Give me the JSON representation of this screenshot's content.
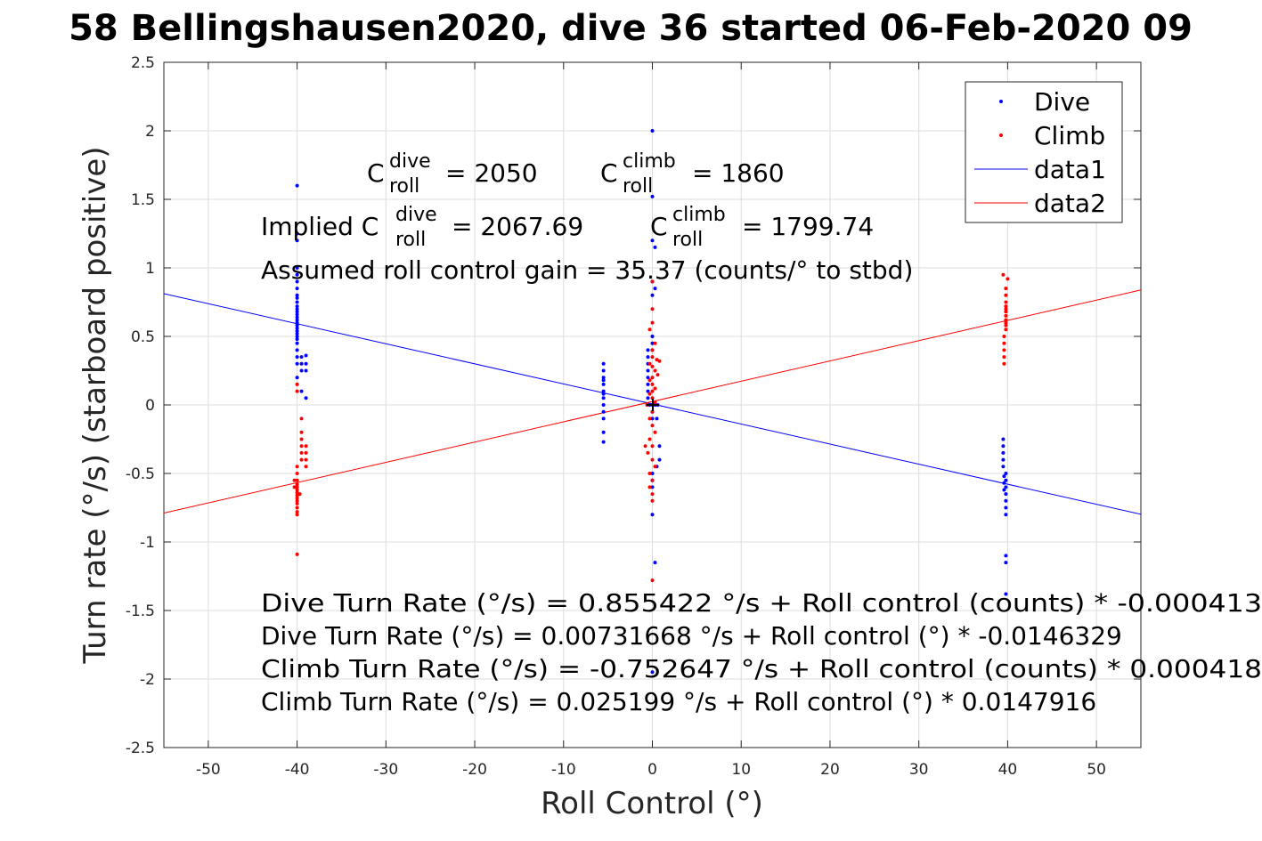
{
  "chart_data": {
    "type": "scatter",
    "title": "58 Bellingshausen2020, dive 36 started 06-Feb-2020 09",
    "xlabel": "Roll Control (°)",
    "ylabel": "Turn rate (°/s) (starboard positive)",
    "xlim": [
      -55,
      55
    ],
    "ylim": [
      -2.5,
      2.5
    ],
    "xticks": [
      "-50",
      "-40",
      "-30",
      "-20",
      "-10",
      "0",
      "10",
      "20",
      "30",
      "40",
      "50"
    ],
    "yticks": [
      "2.5",
      "2",
      "1.5",
      "1",
      "0.5",
      "0",
      "-0.5",
      "-1",
      "-1.5",
      "-2",
      "-2.5"
    ],
    "xtick_values": [
      -50,
      -40,
      -30,
      -20,
      -10,
      0,
      10,
      20,
      30,
      40,
      50
    ],
    "ytick_values": [
      2.5,
      2,
      1.5,
      1,
      0.5,
      0,
      -0.5,
      -1,
      -1.5,
      -2,
      -2.5
    ],
    "grid": true,
    "legend_position": "top-right",
    "legend": [
      {
        "label": "Dive",
        "marker": "dot",
        "color": "#0000ff"
      },
      {
        "label": "Climb",
        "marker": "dot",
        "color": "#ff0000"
      },
      {
        "label": "data1",
        "marker": "line",
        "color": "#0000ff"
      },
      {
        "label": "data2",
        "marker": "line",
        "color": "#ff0000"
      }
    ],
    "series": [
      {
        "name": "Dive",
        "color": "#0000ff",
        "points": [
          [
            -40,
            1.6
          ],
          [
            -40,
            1.25
          ],
          [
            -40,
            1.2
          ],
          [
            -40,
            1.0
          ],
          [
            -40,
            0.95
          ],
          [
            -40,
            0.9
          ],
          [
            -40,
            0.85
          ],
          [
            -40,
            0.8
          ],
          [
            -40,
            0.78
          ],
          [
            -40,
            0.75
          ],
          [
            -40,
            0.72
          ],
          [
            -40,
            0.7
          ],
          [
            -40,
            0.68
          ],
          [
            -40,
            0.66
          ],
          [
            -40,
            0.64
          ],
          [
            -40,
            0.62
          ],
          [
            -40,
            0.6
          ],
          [
            -40,
            0.58
          ],
          [
            -40,
            0.56
          ],
          [
            -40,
            0.54
          ],
          [
            -40,
            0.52
          ],
          [
            -40,
            0.5
          ],
          [
            -40,
            0.48
          ],
          [
            -40,
            0.45
          ],
          [
            -40,
            0.4
          ],
          [
            -40,
            0.35
          ],
          [
            -40,
            0.3
          ],
          [
            -40,
            0.2
          ],
          [
            -39.5,
            0.35
          ],
          [
            -39.5,
            0.3
          ],
          [
            -39.5,
            0.25
          ],
          [
            -39,
            0.36
          ],
          [
            -39,
            0.3
          ],
          [
            -39,
            0.25
          ],
          [
            -39.5,
            0.1
          ],
          [
            -39,
            0.05
          ],
          [
            -5.5,
            0.3
          ],
          [
            -5.5,
            0.25
          ],
          [
            -5.5,
            0.2
          ],
          [
            -5.5,
            0.15
          ],
          [
            -5.5,
            0.1
          ],
          [
            -5.5,
            0.05
          ],
          [
            -5.5,
            0.0
          ],
          [
            -5.5,
            -0.05
          ],
          [
            -5.5,
            -0.1
          ],
          [
            -5.5,
            -0.2
          ],
          [
            -5.5,
            -0.27
          ],
          [
            -5.5,
            0.18
          ],
          [
            -5.5,
            0.08
          ],
          [
            0,
            2.0
          ],
          [
            0,
            1.52
          ],
          [
            0,
            1.2
          ],
          [
            0.3,
            1.15
          ],
          [
            0,
            0.9
          ],
          [
            0.3,
            0.85
          ],
          [
            0,
            0.8
          ],
          [
            0,
            0.5
          ],
          [
            0,
            0.45
          ],
          [
            0,
            0.4
          ],
          [
            -0.5,
            0.4
          ],
          [
            -0.5,
            0.35
          ],
          [
            -0.5,
            0.3
          ],
          [
            -0.5,
            0.25
          ],
          [
            -0.5,
            0.2
          ],
          [
            -0.5,
            0.15
          ],
          [
            -0.5,
            0.1
          ],
          [
            -0.5,
            0.05
          ],
          [
            0,
            0.0
          ],
          [
            0.3,
            0.0
          ],
          [
            0.6,
            0.0
          ],
          [
            -0.3,
            0.0
          ],
          [
            0,
            -0.05
          ],
          [
            0,
            -0.1
          ],
          [
            0.5,
            -0.1
          ],
          [
            0.8,
            -0.3
          ],
          [
            0.8,
            -0.4
          ],
          [
            0.5,
            -0.45
          ],
          [
            0,
            -0.5
          ],
          [
            0,
            -0.55
          ],
          [
            0,
            -0.6
          ],
          [
            0,
            -0.8
          ],
          [
            0.3,
            -1.15
          ],
          [
            0,
            -1.95
          ],
          [
            39.5,
            -0.25
          ],
          [
            39.5,
            -0.3
          ],
          [
            39.5,
            -0.35
          ],
          [
            39.5,
            -0.4
          ],
          [
            39.5,
            -0.45
          ],
          [
            39.8,
            -0.5
          ],
          [
            39.8,
            -0.55
          ],
          [
            39.8,
            -0.6
          ],
          [
            39.8,
            -0.65
          ],
          [
            39.8,
            -0.7
          ],
          [
            39.8,
            -0.75
          ],
          [
            39.8,
            -0.8
          ],
          [
            39.6,
            -0.52
          ],
          [
            39.6,
            -0.57
          ],
          [
            39.6,
            -0.62
          ],
          [
            39.8,
            -1.1
          ],
          [
            39.8,
            -1.15
          ],
          [
            39.8,
            -1.38
          ]
        ]
      },
      {
        "name": "Climb",
        "color": "#ff0000",
        "points": [
          [
            -40,
            0.15
          ],
          [
            -40,
            0.1
          ],
          [
            -39.5,
            -0.1
          ],
          [
            -39.5,
            -0.2
          ],
          [
            -39.5,
            -0.25
          ],
          [
            -39.5,
            -0.3
          ],
          [
            -39.5,
            -0.35
          ],
          [
            -39.5,
            -0.4
          ],
          [
            -39,
            -0.3
          ],
          [
            -39,
            -0.35
          ],
          [
            -39,
            -0.4
          ],
          [
            -39,
            -0.45
          ],
          [
            -40,
            -0.45
          ],
          [
            -40,
            -0.5
          ],
          [
            -40,
            -0.55
          ],
          [
            -40,
            -0.58
          ],
          [
            -40,
            -0.6
          ],
          [
            -40,
            -0.62
          ],
          [
            -40,
            -0.64
          ],
          [
            -40,
            -0.66
          ],
          [
            -40,
            -0.68
          ],
          [
            -40,
            -0.7
          ],
          [
            -40,
            -0.72
          ],
          [
            -40,
            -0.75
          ],
          [
            -40,
            -0.78
          ],
          [
            -40,
            -0.8
          ],
          [
            -40.3,
            -0.55
          ],
          [
            -40.3,
            -0.6
          ],
          [
            -39.7,
            -0.65
          ],
          [
            -40,
            -1.09
          ],
          [
            0,
            0.9
          ],
          [
            0,
            0.7
          ],
          [
            0,
            0.6
          ],
          [
            -0.3,
            0.55
          ],
          [
            0.3,
            0.45
          ],
          [
            0,
            0.4
          ],
          [
            0,
            0.35
          ],
          [
            0.5,
            0.33
          ],
          [
            0.8,
            0.32
          ],
          [
            -0.3,
            0.3
          ],
          [
            0,
            0.28
          ],
          [
            0.3,
            0.25
          ],
          [
            0.6,
            0.22
          ],
          [
            0,
            0.2
          ],
          [
            -0.3,
            0.18
          ],
          [
            0,
            0.15
          ],
          [
            0.3,
            0.12
          ],
          [
            0,
            0.1
          ],
          [
            -0.3,
            0.08
          ],
          [
            0,
            0.05
          ],
          [
            0.3,
            0.02
          ],
          [
            -0.6,
            0.0
          ],
          [
            0,
            -0.05
          ],
          [
            -0.3,
            -0.1
          ],
          [
            0,
            -0.15
          ],
          [
            0.3,
            -0.2
          ],
          [
            -0.3,
            -0.25
          ],
          [
            0,
            -0.3
          ],
          [
            -0.8,
            -0.3
          ],
          [
            -0.5,
            -0.35
          ],
          [
            0,
            -0.4
          ],
          [
            0.3,
            -0.45
          ],
          [
            -0.3,
            -0.5
          ],
          [
            0,
            -0.55
          ],
          [
            -0.3,
            -0.6
          ],
          [
            0,
            -0.65
          ],
          [
            0,
            -0.7
          ],
          [
            0,
            -1.28
          ],
          [
            39.5,
            0.95
          ],
          [
            40,
            0.92
          ],
          [
            39.8,
            0.85
          ],
          [
            39.8,
            0.8
          ],
          [
            39.8,
            0.75
          ],
          [
            39.8,
            0.72
          ],
          [
            39.8,
            0.7
          ],
          [
            39.8,
            0.68
          ],
          [
            39.8,
            0.65
          ],
          [
            39.8,
            0.62
          ],
          [
            39.8,
            0.6
          ],
          [
            39.8,
            0.55
          ],
          [
            39.6,
            0.5
          ],
          [
            39.6,
            0.45
          ],
          [
            39.6,
            0.4
          ],
          [
            39.6,
            0.35
          ],
          [
            39.6,
            0.3
          ],
          [
            39.8,
            0.58
          ]
        ]
      },
      {
        "name": "data1",
        "color": "#0000ff",
        "type": "line",
        "x": [
          -55,
          55
        ],
        "y": [
          0.812,
          -0.798
        ]
      },
      {
        "name": "data2",
        "color": "#ff0000",
        "type": "line",
        "x": [
          -55,
          55
        ],
        "y": [
          -0.789,
          0.839
        ]
      }
    ],
    "annotations": {
      "cdive_prefix": "C",
      "cdive_sup": "dive",
      "cdive_sub": "roll",
      "cdive_value": "= 2050",
      "cclimb_prefix": "C",
      "cclimb_sup": "climb",
      "cclimb_sub": "roll",
      "cclimb_value": "= 1860",
      "implied_prefix": "Implied C",
      "implied_dive_sup": "dive",
      "implied_dive_sub": "roll",
      "implied_dive_value": "= 2067.69",
      "implied_climb_prefix": "C",
      "implied_climb_sup": "climb",
      "implied_climb_sub": "roll",
      "implied_climb_value": "= 1799.74",
      "gain": "Assumed roll control gain = 35.37 (counts/° to stbd)",
      "eq1": "Dive Turn Rate (°/s) = 0.855422 °/s + Roll control (counts) * -0.000413",
      "eq2": "Dive Turn Rate (°/s) = 0.00731668 °/s + Roll control (°) * -0.0146329",
      "eq3": "Climb Turn Rate (°/s) = -0.752647 °/s + Roll control (counts) * 0.000418",
      "eq4": "Climb Turn Rate (°/s) = 0.025199 °/s + Roll control (°) * 0.0147916"
    }
  }
}
